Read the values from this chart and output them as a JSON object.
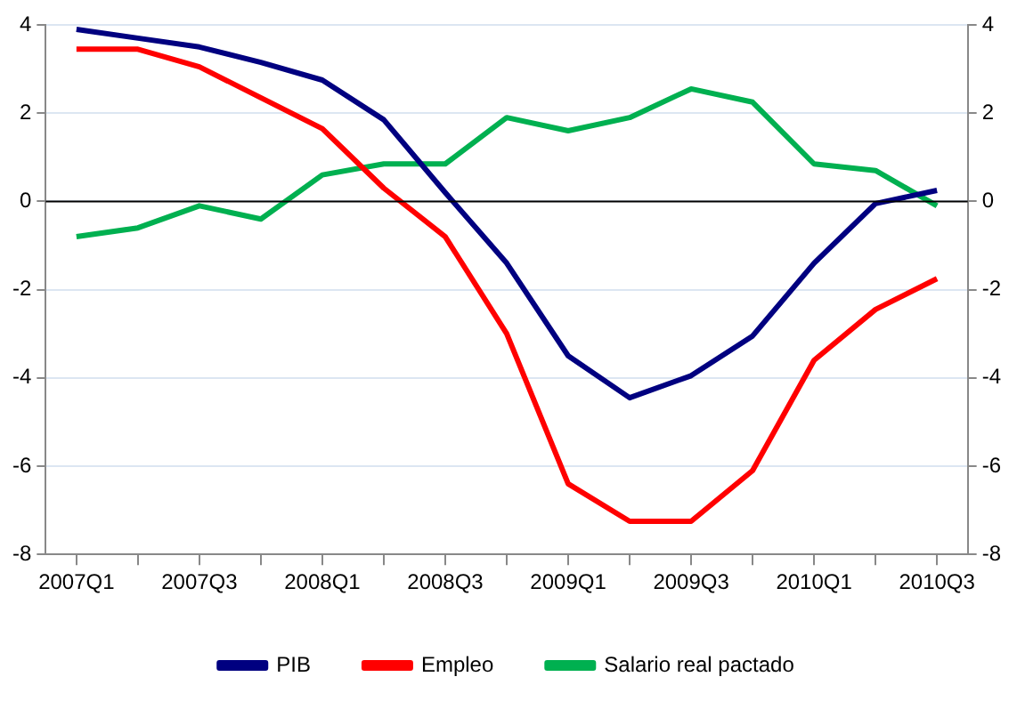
{
  "chart_data": {
    "type": "line",
    "categories": [
      "2007Q1",
      null,
      "2007Q3",
      null,
      "2008Q1",
      null,
      "2008Q3",
      null,
      "2009Q1",
      null,
      "2009Q3",
      null,
      "2010Q1",
      null,
      "2010Q3"
    ],
    "series": [
      {
        "name": "PIB",
        "color": "#000080",
        "values": [
          3.9,
          3.7,
          3.5,
          3.15,
          2.75,
          1.85,
          0.2,
          -1.4,
          -3.5,
          -4.45,
          -3.95,
          -3.05,
          -1.4,
          -0.05,
          0.25
        ]
      },
      {
        "name": "Empleo",
        "color": "#ff0000",
        "values": [
          3.45,
          3.45,
          3.05,
          2.35,
          1.65,
          0.3,
          -0.8,
          -3.0,
          -6.4,
          -7.25,
          -7.25,
          -6.1,
          -3.6,
          -2.45,
          -1.75
        ]
      },
      {
        "name": "Salario real pactado",
        "color": "#00b050",
        "values": [
          -0.8,
          -0.6,
          -0.1,
          -0.4,
          0.6,
          0.85,
          0.85,
          1.9,
          1.6,
          1.9,
          2.55,
          2.25,
          0.85,
          0.7,
          -0.1
        ]
      }
    ],
    "ylim": [
      -8,
      4
    ],
    "yticks": [
      -8,
      -6,
      -4,
      -2,
      0,
      2,
      4
    ],
    "y2lim": [
      -8,
      4
    ],
    "y2ticks": [
      -8,
      -6,
      -4,
      -2,
      0,
      2,
      4
    ],
    "ref_lines": [
      {
        "axis": "y",
        "value": 0,
        "color": "#000000"
      }
    ],
    "grid": "y",
    "legend": "bottom",
    "marker": "none",
    "line_style": "solid"
  }
}
